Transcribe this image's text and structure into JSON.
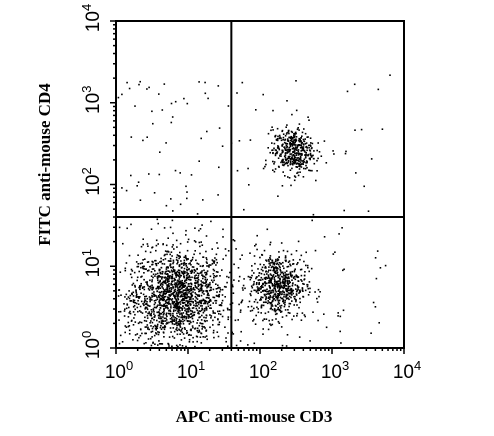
{
  "chart_data": {
    "type": "scatter",
    "xlabel": "APC anti-mouse CD3",
    "ylabel": "FITC anti-mouse CD4",
    "x_scale": "log",
    "y_scale": "log",
    "xlim": [
      1,
      10000
    ],
    "ylim": [
      1,
      10000
    ],
    "x_ticks": [
      {
        "base": "10",
        "exp": "0",
        "value": 1
      },
      {
        "base": "10",
        "exp": "1",
        "value": 10
      },
      {
        "base": "10",
        "exp": "2",
        "value": 100
      },
      {
        "base": "10",
        "exp": "3",
        "value": 1000
      },
      {
        "base": "10",
        "exp": "4",
        "value": 10000
      }
    ],
    "y_ticks": [
      {
        "base": "10",
        "exp": "0",
        "value": 1
      },
      {
        "base": "10",
        "exp": "1",
        "value": 10
      },
      {
        "base": "10",
        "exp": "2",
        "value": 100
      },
      {
        "base": "10",
        "exp": "3",
        "value": 1000
      },
      {
        "base": "10",
        "exp": "4",
        "value": 10000
      }
    ],
    "quadrant_gates": {
      "x": 40,
      "y": 40
    },
    "grid": false,
    "point_color": "#000000",
    "clusters": [
      {
        "center": [
          8,
          4.5
        ],
        "spread_decades": [
          0.3,
          0.28
        ],
        "count": 1300
      },
      {
        "center": [
          170,
          6
        ],
        "spread_decades": [
          0.2,
          0.2
        ],
        "count": 650
      },
      {
        "center": [
          280,
          260
        ],
        "spread_decades": [
          0.14,
          0.14
        ],
        "count": 420
      },
      {
        "center": [
          3,
          4
        ],
        "spread_decades": [
          0.25,
          0.3
        ],
        "count": 250
      }
    ],
    "scattered_count": 260
  }
}
